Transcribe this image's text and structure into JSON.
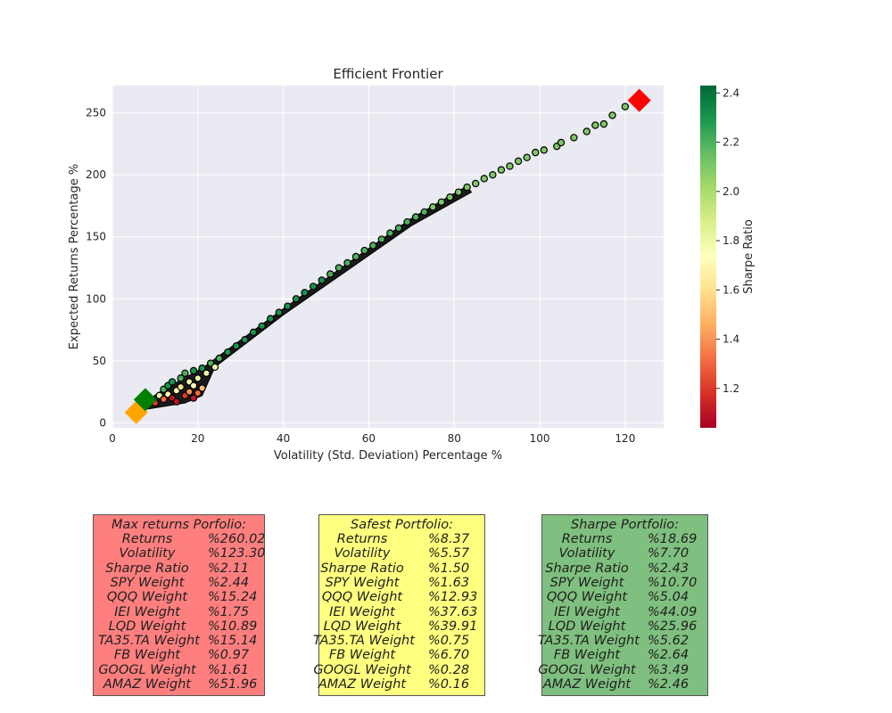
{
  "chart_data": {
    "type": "scatter",
    "title": "Efficient Frontier",
    "xlabel": "Volatility (Std. Deviation) Percentage %",
    "ylabel": "Expected Returns Percentage %",
    "xlim": [
      0,
      129
    ],
    "ylim": [
      -4,
      272
    ],
    "xticks": [
      0,
      20,
      40,
      60,
      80,
      100,
      120
    ],
    "yticks": [
      0,
      50,
      100,
      150,
      200,
      250
    ],
    "grid": true,
    "colorbar": {
      "label": "Sharpe Ratio",
      "range": [
        1.04,
        2.43
      ],
      "ticks": [
        1.2,
        1.4,
        1.6,
        1.8,
        2.0,
        2.2,
        2.4
      ],
      "colormap": "RdYlGn"
    },
    "frontier_points": [
      {
        "x": 6,
        "y": 13,
        "s": 1.3
      },
      {
        "x": 7,
        "y": 17,
        "s": 1.9
      },
      {
        "x": 8,
        "y": 20,
        "s": 2.3
      },
      {
        "x": 9,
        "y": 17,
        "s": 1.5
      },
      {
        "x": 10,
        "y": 16,
        "s": 1.2
      },
      {
        "x": 11,
        "y": 22,
        "s": 1.8
      },
      {
        "x": 12,
        "y": 27,
        "s": 2.2
      },
      {
        "x": 12,
        "y": 19,
        "s": 1.3
      },
      {
        "x": 13,
        "y": 30,
        "s": 2.3
      },
      {
        "x": 13,
        "y": 23,
        "s": 1.7
      },
      {
        "x": 14,
        "y": 20,
        "s": 1.1
      },
      {
        "x": 14,
        "y": 33,
        "s": 2.3
      },
      {
        "x": 15,
        "y": 26,
        "s": 1.7
      },
      {
        "x": 15,
        "y": 17,
        "s": 1.1
      },
      {
        "x": 16,
        "y": 36,
        "s": 2.2
      },
      {
        "x": 16,
        "y": 29,
        "s": 1.6
      },
      {
        "x": 17,
        "y": 22,
        "s": 1.2
      },
      {
        "x": 17,
        "y": 40,
        "s": 2.2
      },
      {
        "x": 18,
        "y": 33,
        "s": 1.8
      },
      {
        "x": 18,
        "y": 25,
        "s": 1.4
      },
      {
        "x": 19,
        "y": 42,
        "s": 2.3
      },
      {
        "x": 19,
        "y": 30,
        "s": 1.7
      },
      {
        "x": 19,
        "y": 20,
        "s": 1.1
      },
      {
        "x": 20,
        "y": 36,
        "s": 1.8
      },
      {
        "x": 20,
        "y": 24,
        "s": 1.3
      },
      {
        "x": 21,
        "y": 44,
        "s": 2.3
      },
      {
        "x": 21,
        "y": 28,
        "s": 1.5
      },
      {
        "x": 22,
        "y": 40,
        "s": 1.8
      },
      {
        "x": 23,
        "y": 48,
        "s": 2.2
      },
      {
        "x": 24,
        "y": 45,
        "s": 1.8
      },
      {
        "x": 25,
        "y": 52,
        "s": 2.2
      },
      {
        "x": 27,
        "y": 57,
        "s": 2.3
      },
      {
        "x": 29,
        "y": 62,
        "s": 2.3
      },
      {
        "x": 31,
        "y": 67,
        "s": 2.3
      },
      {
        "x": 33,
        "y": 73,
        "s": 2.3
      },
      {
        "x": 35,
        "y": 78,
        "s": 2.3
      },
      {
        "x": 37,
        "y": 84,
        "s": 2.3
      },
      {
        "x": 39,
        "y": 89,
        "s": 2.3
      },
      {
        "x": 41,
        "y": 94,
        "s": 2.3
      },
      {
        "x": 43,
        "y": 100,
        "s": 2.3
      },
      {
        "x": 45,
        "y": 105,
        "s": 2.3
      },
      {
        "x": 47,
        "y": 110,
        "s": 2.3
      },
      {
        "x": 49,
        "y": 115,
        "s": 2.3
      },
      {
        "x": 51,
        "y": 120,
        "s": 2.2
      },
      {
        "x": 53,
        "y": 125,
        "s": 2.2
      },
      {
        "x": 55,
        "y": 129,
        "s": 2.2
      },
      {
        "x": 57,
        "y": 134,
        "s": 2.2
      },
      {
        "x": 59,
        "y": 139,
        "s": 2.2
      },
      {
        "x": 61,
        "y": 143,
        "s": 2.2
      },
      {
        "x": 63,
        "y": 148,
        "s": 2.2
      },
      {
        "x": 65,
        "y": 153,
        "s": 2.2
      },
      {
        "x": 67,
        "y": 157,
        "s": 2.2
      },
      {
        "x": 69,
        "y": 162,
        "s": 2.2
      },
      {
        "x": 71,
        "y": 166,
        "s": 2.2
      },
      {
        "x": 73,
        "y": 170,
        "s": 2.2
      },
      {
        "x": 75,
        "y": 174,
        "s": 2.1
      },
      {
        "x": 77,
        "y": 178,
        "s": 2.1
      },
      {
        "x": 79,
        "y": 182,
        "s": 2.1
      },
      {
        "x": 81,
        "y": 186,
        "s": 2.1
      },
      {
        "x": 83,
        "y": 190,
        "s": 2.1
      },
      {
        "x": 85,
        "y": 193,
        "s": 2.1
      },
      {
        "x": 87,
        "y": 197,
        "s": 2.1
      },
      {
        "x": 89,
        "y": 200,
        "s": 2.1
      },
      {
        "x": 91,
        "y": 204,
        "s": 2.1
      },
      {
        "x": 93,
        "y": 207,
        "s": 2.1
      },
      {
        "x": 95,
        "y": 211,
        "s": 2.1
      },
      {
        "x": 97,
        "y": 214,
        "s": 2.1
      },
      {
        "x": 99,
        "y": 218,
        "s": 2.1
      },
      {
        "x": 101,
        "y": 220,
        "s": 2.1
      },
      {
        "x": 104,
        "y": 223,
        "s": 2.1
      },
      {
        "x": 105,
        "y": 226,
        "s": 2.1
      },
      {
        "x": 108,
        "y": 230,
        "s": 2.1
      },
      {
        "x": 111,
        "y": 235,
        "s": 2.1
      },
      {
        "x": 113,
        "y": 240,
        "s": 2.1
      },
      {
        "x": 115,
        "y": 241,
        "s": 2.1
      },
      {
        "x": 117,
        "y": 248,
        "s": 2.1
      },
      {
        "x": 120,
        "y": 255,
        "s": 2.1
      }
    ],
    "markers": [
      {
        "name": "Max returns",
        "x": 123.3,
        "y": 260.02,
        "color": "#ff0000"
      },
      {
        "name": "Safest",
        "x": 5.57,
        "y": 8.37,
        "color": "#ffa500"
      },
      {
        "name": "Sharpe",
        "x": 7.7,
        "y": 18.69,
        "color": "#008000"
      }
    ]
  },
  "portfolios": [
    {
      "id": "max",
      "title": "Max returns Porfolio:",
      "bg": "#ff7f7f",
      "rows": [
        {
          "label": "Returns",
          "value": "%260.02"
        },
        {
          "label": "Volatility",
          "value": "%123.30"
        },
        {
          "label": "Sharpe Ratio",
          "value": "%2.11"
        },
        {
          "label": "SPY Weight",
          "value": "%2.44"
        },
        {
          "label": "QQQ Weight",
          "value": "%15.24"
        },
        {
          "label": "IEI Weight",
          "value": "%1.75"
        },
        {
          "label": "LQD Weight",
          "value": "%10.89"
        },
        {
          "label": "TA35.TA Weight",
          "value": "%15.14"
        },
        {
          "label": "FB Weight",
          "value": "%0.97"
        },
        {
          "label": "GOOGL Weight",
          "value": "%1.61"
        },
        {
          "label": "AMAZ Weight",
          "value": "%51.96"
        }
      ]
    },
    {
      "id": "safe",
      "title": "Safest Portfolio:",
      "bg": "#ffff7f",
      "rows": [
        {
          "label": "Returns",
          "value": "%8.37"
        },
        {
          "label": "Volatility",
          "value": "%5.57"
        },
        {
          "label": "Sharpe Ratio",
          "value": "%1.50"
        },
        {
          "label": "SPY Weight",
          "value": "%1.63"
        },
        {
          "label": "QQQ Weight",
          "value": "%12.93"
        },
        {
          "label": "IEI Weight",
          "value": "%37.63"
        },
        {
          "label": "LQD Weight",
          "value": "%39.91"
        },
        {
          "label": "TA35.TA Weight",
          "value": "%0.75"
        },
        {
          "label": "FB Weight",
          "value": "%6.70"
        },
        {
          "label": "GOOGL Weight",
          "value": "%0.28"
        },
        {
          "label": "AMAZ Weight",
          "value": "%0.16"
        }
      ]
    },
    {
      "id": "sharpe",
      "title": "Sharpe  Portfolio:",
      "bg": "#7fbf7f",
      "rows": [
        {
          "label": "Returns",
          "value": "%18.69"
        },
        {
          "label": "Volatility",
          "value": "%7.70"
        },
        {
          "label": "Sharpe Ratio",
          "value": "%2.43"
        },
        {
          "label": "SPY Weight",
          "value": "%10.70"
        },
        {
          "label": "QQQ Weight",
          "value": "%5.04"
        },
        {
          "label": "IEI Weight",
          "value": "%44.09"
        },
        {
          "label": "LQD Weight",
          "value": "%25.96"
        },
        {
          "label": "TA35.TA Weight",
          "value": "%5.62"
        },
        {
          "label": "FB Weight",
          "value": "%2.64"
        },
        {
          "label": "GOOGL Weight",
          "value": "%3.49"
        },
        {
          "label": "AMAZ Weight",
          "value": "%2.46"
        }
      ]
    }
  ]
}
